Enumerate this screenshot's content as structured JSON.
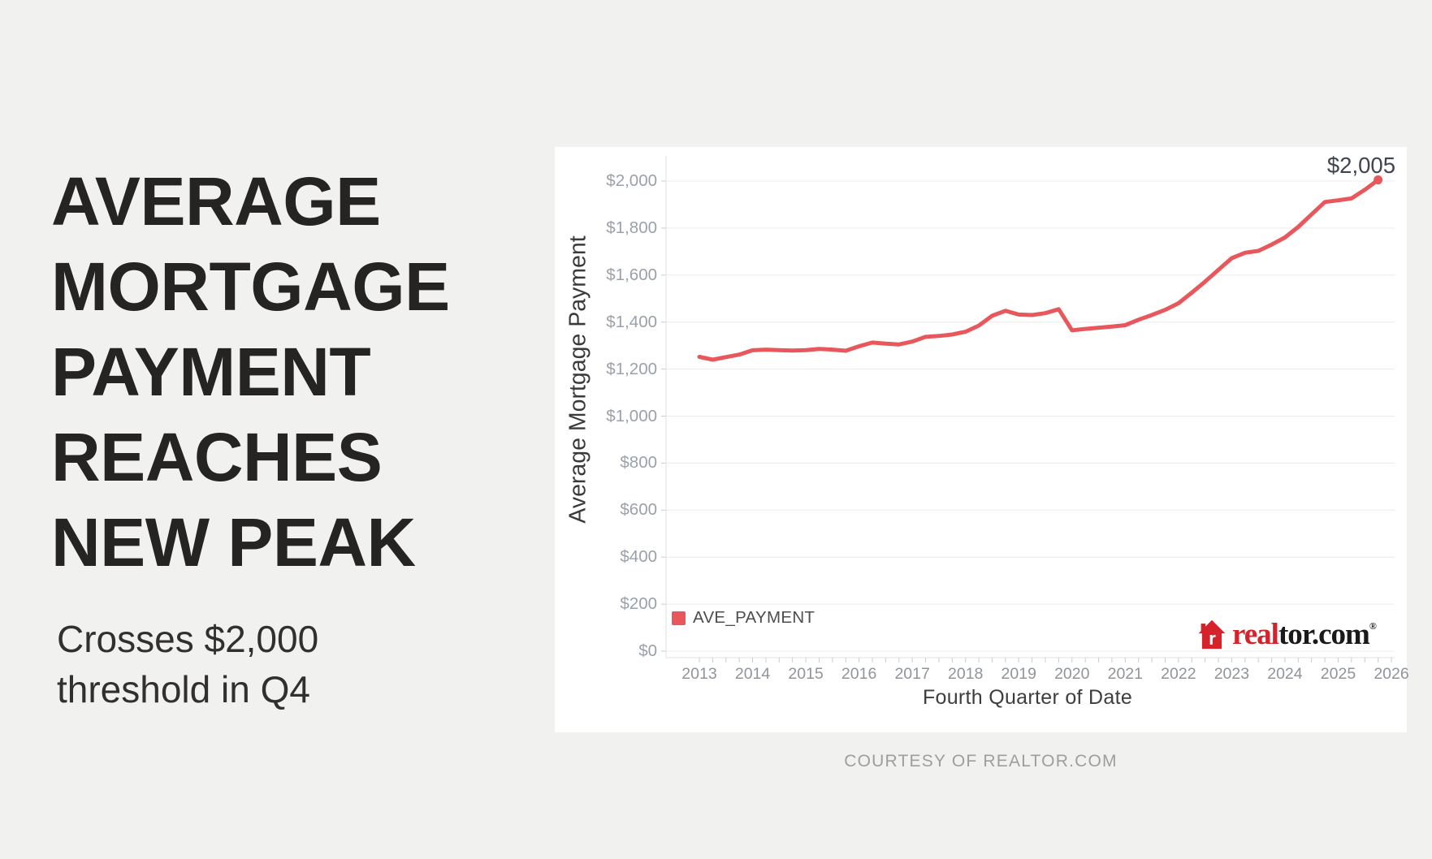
{
  "page": {
    "background": "#f1f1f0",
    "card_background": "#ffffff"
  },
  "headline": {
    "lines": [
      "AVERAGE",
      "MORTGAGE",
      "PAYMENT",
      "REACHES",
      "NEW PEAK"
    ],
    "subtitle_lines": [
      "Crosses $2,000",
      "threshold in Q4"
    ]
  },
  "chart_data": {
    "type": "line",
    "title": "",
    "xlabel": "Fourth Quarter of Date",
    "ylabel": "Average Mortgage Payment",
    "legend_position": "bottom-left-inside",
    "grid": "horizontal",
    "ylim": [
      0,
      2100
    ],
    "xlim": [
      2012.4,
      2026.1
    ],
    "x_start": 2013.0,
    "x_step": 0.25,
    "xticks": [
      {
        "label": "2013",
        "value": 2013
      },
      {
        "label": "2014",
        "value": 2014
      },
      {
        "label": "2015",
        "value": 2015
      },
      {
        "label": "2016",
        "value": 2016
      },
      {
        "label": "2017",
        "value": 2017
      },
      {
        "label": "2018",
        "value": 2018
      },
      {
        "label": "2019",
        "value": 2019
      },
      {
        "label": "2020",
        "value": 2020
      },
      {
        "label": "2021",
        "value": 2021
      },
      {
        "label": "2022",
        "value": 2022
      },
      {
        "label": "2023",
        "value": 2023
      },
      {
        "label": "2024",
        "value": 2024
      },
      {
        "label": "2025",
        "value": 2025
      },
      {
        "label": "2026",
        "value": 2026
      }
    ],
    "yticks": [
      {
        "label": "$0",
        "value": 0
      },
      {
        "label": "$200",
        "value": 200
      },
      {
        "label": "$400",
        "value": 400
      },
      {
        "label": "$600",
        "value": 600
      },
      {
        "label": "$800",
        "value": 800
      },
      {
        "label": "$1,000",
        "value": 1000
      },
      {
        "label": "$1,200",
        "value": 1200
      },
      {
        "label": "$1,400",
        "value": 1400
      },
      {
        "label": "$1,600",
        "value": 1600
      },
      {
        "label": "$1,800",
        "value": 1800
      },
      {
        "label": "$2,000",
        "value": 2000
      }
    ],
    "series": [
      {
        "name": "AVE_PAYMENT",
        "color": "#e8575b",
        "points": [
          {
            "q": "2013 Q1",
            "v": 1252
          },
          {
            "q": "2013 Q2",
            "v": 1240
          },
          {
            "q": "2013 Q3",
            "v": 1251
          },
          {
            "q": "2013 Q4",
            "v": 1262
          },
          {
            "q": "2014 Q1",
            "v": 1280
          },
          {
            "q": "2014 Q2",
            "v": 1283
          },
          {
            "q": "2014 Q3",
            "v": 1281
          },
          {
            "q": "2014 Q4",
            "v": 1279
          },
          {
            "q": "2015 Q1",
            "v": 1281
          },
          {
            "q": "2015 Q2",
            "v": 1286
          },
          {
            "q": "2015 Q3",
            "v": 1283
          },
          {
            "q": "2015 Q4",
            "v": 1278
          },
          {
            "q": "2016 Q1",
            "v": 1297
          },
          {
            "q": "2016 Q2",
            "v": 1313
          },
          {
            "q": "2016 Q3",
            "v": 1308
          },
          {
            "q": "2016 Q4",
            "v": 1305
          },
          {
            "q": "2017 Q1",
            "v": 1317
          },
          {
            "q": "2017 Q2",
            "v": 1337
          },
          {
            "q": "2017 Q3",
            "v": 1341
          },
          {
            "q": "2017 Q4",
            "v": 1347
          },
          {
            "q": "2018 Q1",
            "v": 1359
          },
          {
            "q": "2018 Q2",
            "v": 1385
          },
          {
            "q": "2018 Q3",
            "v": 1427
          },
          {
            "q": "2018 Q4",
            "v": 1448
          },
          {
            "q": "2019 Q1",
            "v": 1432
          },
          {
            "q": "2019 Q2",
            "v": 1430
          },
          {
            "q": "2019 Q3",
            "v": 1438
          },
          {
            "q": "2019 Q4",
            "v": 1455
          },
          {
            "q": "2020 Q1",
            "v": 1365
          },
          {
            "q": "2020 Q2",
            "v": 1371
          },
          {
            "q": "2020 Q3",
            "v": 1376
          },
          {
            "q": "2020 Q4",
            "v": 1381
          },
          {
            "q": "2021 Q1",
            "v": 1387
          },
          {
            "q": "2021 Q2",
            "v": 1410
          },
          {
            "q": "2021 Q3",
            "v": 1430
          },
          {
            "q": "2021 Q4",
            "v": 1452
          },
          {
            "q": "2022 Q1",
            "v": 1480
          },
          {
            "q": "2022 Q2",
            "v": 1525
          },
          {
            "q": "2022 Q3",
            "v": 1572
          },
          {
            "q": "2022 Q4",
            "v": 1622
          },
          {
            "q": "2023 Q1",
            "v": 1672
          },
          {
            "q": "2023 Q2",
            "v": 1695
          },
          {
            "q": "2023 Q3",
            "v": 1703
          },
          {
            "q": "2023 Q4",
            "v": 1730
          },
          {
            "q": "2024 Q1",
            "v": 1760
          },
          {
            "q": "2024 Q2",
            "v": 1805
          },
          {
            "q": "2024 Q3",
            "v": 1858
          },
          {
            "q": "2024 Q4",
            "v": 1911
          },
          {
            "q": "2025 Q1",
            "v": 1918
          },
          {
            "q": "2025 Q2",
            "v": 1926
          },
          {
            "q": "2025 Q3",
            "v": 1963
          },
          {
            "q": "2025 Q4",
            "v": 2005
          }
        ]
      }
    ],
    "annotation": {
      "text": "$2,005",
      "x": 2025.75,
      "y": 2005
    }
  },
  "branding": {
    "icon_letter": "r",
    "logo_red_part": "real",
    "logo_black_part": "tor.com",
    "logo_reg_mark": "®",
    "logo_red": "#d6232b"
  },
  "footer": {
    "text": "COURTESY OF REALTOR.COM"
  }
}
